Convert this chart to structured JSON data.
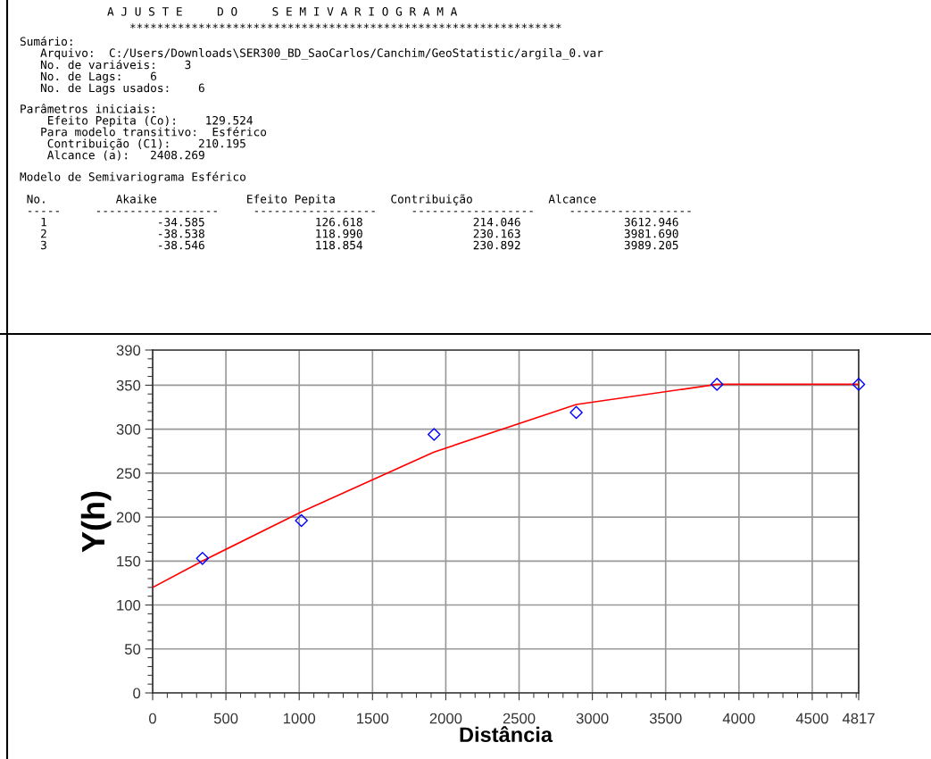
{
  "chart_data": {
    "type": "scatter",
    "title": "A J U S T E     D O     S E M I V A R I O G R A M A",
    "annotations": [
      "***************************************************************",
      "Sumário:\n   Arquivo:  C:/Users/Downloads\\SER300_BD_SaoCarlos/Canchim/GeoStatistic/argila_0.var\n   No. de variáveis:    3\n   No. de Lags:    6\n   No. de Lags usados:    6",
      "Parâmetros iniciais:\n    Efeito Pepita (Co):    129.524\n   Para modelo transitivo:  Esférico\n    Contribuição (C1):    210.195\n    Alcance (a):   2408.269",
      "Modelo de Semivariograma Esférico",
      " No.          Akaike             Efeito Pepita        Contribuição           Alcance\n -----     ------------------     ------------------     ------------------     ------------------\n   1                -34.585                126.618                214.046               3612.946\n   2                -38.538                118.990                230.163               3981.690\n   3                -38.546                118.854                230.892               3989.205"
    ],
    "xlabel": "Distância",
    "ylabel": "Y(h)",
    "xlim": [
      0,
      4817
    ],
    "xticks": [
      0,
      500,
      1000,
      1500,
      2000,
      2500,
      3000,
      3500,
      4000,
      4500,
      4817
    ],
    "ylim": [
      0,
      390
    ],
    "yticks": [
      0,
      50,
      100,
      150,
      200,
      250,
      300,
      350,
      390
    ],
    "grid": true,
    "series": [
      {
        "color": "#0000ff",
        "marker": "diamond",
        "x": [
          340,
          1015,
          1920,
          2890,
          3850,
          4817
        ],
        "values": [
          153,
          196,
          294,
          319,
          351,
          351
        ]
      },
      {
        "type": "line",
        "color": "#ff0000",
        "line_style": "solid",
        "x": [
          0,
          340,
          1015,
          1920,
          2890,
          3850,
          4817
        ],
        "values": [
          120,
          150,
          206,
          274,
          328,
          351,
          351
        ]
      }
    ]
  }
}
